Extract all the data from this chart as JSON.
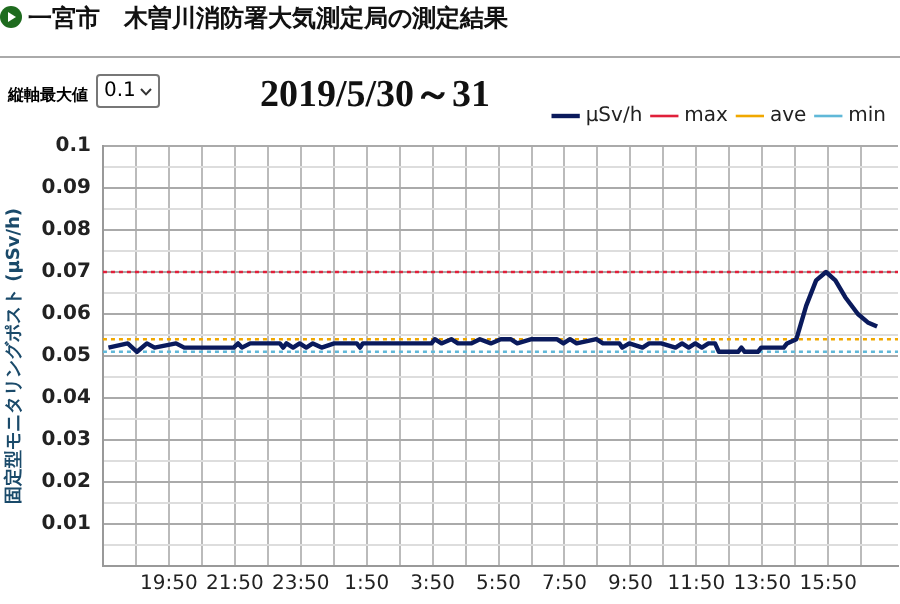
{
  "chart_data": {
    "type": "line",
    "title": "一宮市　木曽川消防署大気測定局の測定結果",
    "subtitle": "2019/5/30～31",
    "ylabel": "固定型モニタリングポスト (μSv/h)",
    "annotations": [
      "縦軸最大値",
      "0.1"
    ],
    "x": [
      "2019-05-30T18:00",
      "2019-05-30T18:35",
      "2019-05-30T18:52",
      "2019-05-30T19:10",
      "2019-05-30T19:24",
      "2019-05-30T20:03",
      "2019-05-30T20:18",
      "2019-05-30T21:48",
      "2019-05-30T21:56",
      "2019-05-30T22:03",
      "2019-05-30T22:18",
      "2019-05-30T23:12",
      "2019-05-30T23:18",
      "2019-05-30T23:24",
      "2019-05-30T23:36",
      "2019-05-30T23:48",
      "2019-05-31T00:00",
      "2019-05-31T00:12",
      "2019-05-31T00:28",
      "2019-05-31T00:51",
      "2019-05-31T01:32",
      "2019-05-31T01:38",
      "2019-05-31T01:43",
      "2019-05-31T03:48",
      "2019-05-31T03:54",
      "2019-05-31T04:06",
      "2019-05-31T04:24",
      "2019-05-31T04:36",
      "2019-05-31T05:00",
      "2019-05-31T05:16",
      "2019-05-31T05:36",
      "2019-05-31T05:54",
      "2019-05-31T06:12",
      "2019-05-31T06:24",
      "2019-05-31T06:50",
      "2019-05-31T07:36",
      "2019-05-31T07:48",
      "2019-05-31T08:00",
      "2019-05-31T08:12",
      "2019-05-31T08:48",
      "2019-05-31T09:00",
      "2019-05-31T09:30",
      "2019-05-31T09:35",
      "2019-05-31T09:48",
      "2019-05-31T10:12",
      "2019-05-31T10:24",
      "2019-05-31T10:46",
      "2019-05-31T11:12",
      "2019-05-31T11:24",
      "2019-05-31T11:36",
      "2019-05-31T11:48",
      "2019-05-31T12:00",
      "2019-05-31T12:12",
      "2019-05-31T12:24",
      "2019-05-31T12:31",
      "2019-05-31T13:06",
      "2019-05-31T13:12",
      "2019-05-31T13:18",
      "2019-05-31T13:42",
      "2019-05-31T13:48",
      "2019-05-31T14:29",
      "2019-05-31T14:35",
      "2019-05-31T14:52",
      "2019-05-31T15:10",
      "2019-05-31T15:28",
      "2019-05-31T15:46",
      "2019-05-31T16:03",
      "2019-05-31T16:21",
      "2019-05-31T16:44",
      "2019-05-31T17:02",
      "2019-05-31T17:19"
    ],
    "series": [
      {
        "name": "μSv/h",
        "color": "#0a1a5c",
        "values": [
          0.052,
          0.053,
          0.051,
          0.053,
          0.052,
          0.053,
          0.052,
          0.052,
          0.053,
          0.052,
          0.053,
          0.053,
          0.052,
          0.053,
          0.052,
          0.053,
          0.052,
          0.053,
          0.052,
          0.053,
          0.053,
          0.052,
          0.053,
          0.053,
          0.054,
          0.053,
          0.054,
          0.053,
          0.053,
          0.054,
          0.053,
          0.054,
          0.054,
          0.053,
          0.054,
          0.054,
          0.053,
          0.054,
          0.053,
          0.054,
          0.053,
          0.053,
          0.052,
          0.053,
          0.052,
          0.053,
          0.053,
          0.052,
          0.053,
          0.052,
          0.053,
          0.052,
          0.053,
          0.053,
          0.051,
          0.051,
          0.052,
          0.051,
          0.051,
          0.052,
          0.052,
          0.053,
          0.054,
          0.062,
          0.068,
          0.07,
          0.068,
          0.064,
          0.06,
          0.058,
          0.057
        ]
      }
    ],
    "ref_lines": [
      {
        "axis": "y",
        "value": 0.07,
        "label": "max",
        "color": "#e0203a",
        "line_style": "dotted"
      },
      {
        "axis": "y",
        "value": 0.054,
        "label": "ave",
        "color": "#f0a800",
        "line_style": "dotted"
      },
      {
        "axis": "y",
        "value": 0.051,
        "label": "min",
        "color": "#60b8d8",
        "line_style": "dotted"
      }
    ],
    "xlim": [
      "2019-05-30T17:50",
      "2019-05-31T17:57"
    ],
    "xticks": [
      {
        "value": "2019-05-30T18:50",
        "label": null
      },
      {
        "value": "2019-05-30T19:50",
        "label": "19:50"
      },
      {
        "value": "2019-05-30T20:50",
        "label": null
      },
      {
        "value": "2019-05-30T21:50",
        "label": "21:50"
      },
      {
        "value": "2019-05-30T22:50",
        "label": null
      },
      {
        "value": "2019-05-30T23:50",
        "label": "23:50"
      },
      {
        "value": "2019-05-31T00:50",
        "label": null
      },
      {
        "value": "2019-05-31T01:50",
        "label": "1:50"
      },
      {
        "value": "2019-05-31T02:50",
        "label": null
      },
      {
        "value": "2019-05-31T03:50",
        "label": "3:50"
      },
      {
        "value": "2019-05-31T04:50",
        "label": null
      },
      {
        "value": "2019-05-31T05:50",
        "label": "5:50"
      },
      {
        "value": "2019-05-31T06:50",
        "label": null
      },
      {
        "value": "2019-05-31T07:50",
        "label": "7:50"
      },
      {
        "value": "2019-05-31T08:50",
        "label": null
      },
      {
        "value": "2019-05-31T09:50",
        "label": "9:50"
      },
      {
        "value": "2019-05-31T10:50",
        "label": null
      },
      {
        "value": "2019-05-31T11:50",
        "label": "11:50"
      },
      {
        "value": "2019-05-31T12:50",
        "label": null
      },
      {
        "value": "2019-05-31T13:50",
        "label": "13:50"
      },
      {
        "value": "2019-05-31T14:50",
        "label": null
      },
      {
        "value": "2019-05-31T15:50",
        "label": "15:50"
      },
      {
        "value": "2019-05-31T16:50",
        "label": null
      }
    ],
    "ylim": [
      0,
      0.1
    ],
    "yticks": [
      {
        "value": 0,
        "label": null
      },
      {
        "value": 0.005,
        "label": null
      },
      0.01,
      {
        "value": 0.015,
        "label": null
      },
      0.02,
      {
        "value": 0.025,
        "label": null
      },
      0.03,
      {
        "value": 0.035,
        "label": null
      },
      0.04,
      {
        "value": 0.045,
        "label": null
      },
      0.05,
      {
        "value": 0.055,
        "label": null
      },
      0.06,
      {
        "value": 0.065,
        "label": null
      },
      0.07,
      {
        "value": 0.075,
        "label": null
      },
      0.08,
      {
        "value": 0.085,
        "label": null
      },
      0.09,
      {
        "value": 0.095,
        "label": null
      },
      0.1
    ],
    "grid": true,
    "legend": "top right",
    "marker": "none",
    "line_style": "solid"
  }
}
